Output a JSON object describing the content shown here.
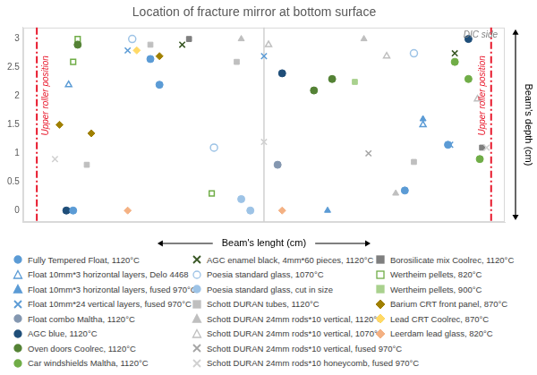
{
  "chart_data": {
    "type": "scatter",
    "title": "Location of fracture mirror at bottom surface",
    "x_label": "Beam's lenght (cm)",
    "y_label": "Beam's depth (cm)",
    "roller_label": "Upper roller position",
    "roller_positions": [
      -5,
      5
    ],
    "center_line": 0,
    "corner_label": "DIC side",
    "xlim": [
      -5.3,
      5.3
    ],
    "ylim": [
      -0.2,
      3.2
    ],
    "yticks": [
      0,
      0.5,
      1,
      1.5,
      2,
      2.5,
      3
    ],
    "tick_labels": "y",
    "grid": false,
    "legend": "bottom",
    "series": [
      {
        "name": "Fully Tempered Float, 1120°C",
        "color": "#5b9bd5",
        "marker": "circle",
        "x": [
          -4.2,
          -2.5,
          -2.3,
          3.1,
          4.05
        ],
        "values": [
          0,
          2.65,
          2.2,
          0.35,
          1.15
        ]
      },
      {
        "name": "Float 10mm*3 horizontal layers, Delo 4468",
        "color": "#5b9bd5",
        "marker": "triangle-open",
        "x": [
          -4.3,
          3.5
        ],
        "values": [
          2.2,
          1.5
        ]
      },
      {
        "name": "Float 10mm*3 horizontal layers, fused 970°C",
        "color": "#5b9bd5",
        "marker": "triangle",
        "x": [
          1.4,
          3.5
        ],
        "values": [
          0,
          1.6
        ]
      },
      {
        "name": "Float 10mm*24 vertical layers, fused 970°C",
        "color": "#5b9bd5",
        "marker": "x",
        "x": [
          -3.0,
          0,
          4.1
        ],
        "values": [
          2.8,
          2.7,
          1.15
        ]
      },
      {
        "name": "Float combo Maltha, 1120°C",
        "color": "#8497b0",
        "marker": "circle",
        "x": [
          0.3
        ],
        "values": [
          0.8
        ]
      },
      {
        "name": "AGC blue, 1120°C",
        "color": "#1f4e79",
        "marker": "circle",
        "x": [
          -4.35,
          0.4,
          4.5
        ],
        "values": [
          0,
          2.4,
          3.0
        ]
      },
      {
        "name": "Oven doors Coolrec, 1120°C",
        "color": "#548235",
        "marker": "circle",
        "x": [
          -4.1,
          1.1,
          1.5
        ],
        "values": [
          2.9,
          2.1,
          2.3
        ]
      },
      {
        "name": "Car windshields Maltha, 1120°C",
        "color": "#70ad47",
        "marker": "circle",
        "x": [
          4.2,
          4.5,
          4.75
        ],
        "values": [
          2.6,
          2.3,
          0.9
        ]
      },
      {
        "name": "AGC enamel black, 4mm*60 pieces, 1120°C",
        "color": "#375623",
        "marker": "x",
        "x": [
          -1.8,
          4.2
        ],
        "values": [
          2.9,
          2.75
        ]
      },
      {
        "name": "Poesia standard glass, 1070°C",
        "color": "#9dc3e6",
        "marker": "circle-open",
        "x": [
          -2.9,
          -1.1,
          3.3
        ],
        "values": [
          3.0,
          1.1,
          2.75
        ]
      },
      {
        "name": "Poesia standard glass, cut in size",
        "color": "#9dc3e6",
        "marker": "circle",
        "x": [
          -0.5,
          -0.3
        ],
        "values": [
          0.2,
          0
        ]
      },
      {
        "name": "Schott DURAN tubes, 1120°C",
        "color": "#bfbfbf",
        "marker": "square",
        "x": [
          -3.9,
          -2.5,
          -0.6,
          3.3
        ],
        "values": [
          0.8,
          2.9,
          2.6,
          0.85
        ]
      },
      {
        "name": "Schott DURAN 24mm rods*10 vertical, 1120°C",
        "color": "#bfbfbf",
        "marker": "triangle",
        "x": [
          -0.5,
          2.2,
          2.9
        ],
        "values": [
          3.0,
          3.0,
          0.3
        ]
      },
      {
        "name": "Schott DURAN 24mm rods*10 vertical, 1070°C",
        "color": "#bfbfbf",
        "marker": "triangle-open",
        "x": [
          0.1,
          2.7,
          4.7
        ],
        "values": [
          2.9,
          2.7,
          1.95
        ]
      },
      {
        "name": "Schott DURAN 24mm rods*10 vertical, fused 970°C",
        "color": "#a5a5a5",
        "marker": "x",
        "x": [
          2.3
        ],
        "values": [
          1.0
        ]
      },
      {
        "name": "Schott DURAN 24mm rods*10 honeycomb, fused 970°C",
        "color": "#d0d0d0",
        "marker": "x",
        "x": [
          -4.6,
          0,
          4.9
        ],
        "values": [
          0.9,
          1.2,
          1.1
        ]
      },
      {
        "name": "Borosilicate mix Coolrec, 1120°C",
        "color": "#7f7f7f",
        "marker": "square",
        "x": [
          -1.65,
          4.8
        ],
        "values": [
          3.0,
          1.1
        ]
      },
      {
        "name": "Wertheim pellets, 820°C",
        "color": "#70ad47",
        "marker": "square-open",
        "x": [
          -4.1,
          -4.2,
          -1.15
        ],
        "values": [
          3.0,
          2.6,
          0.3
        ]
      },
      {
        "name": "Wertheim pellets, 900°C",
        "color": "#a9d18e",
        "marker": "square",
        "x": [
          2.0
        ],
        "values": [
          2.25
        ]
      },
      {
        "name": "Barium CRT front panel, 870°C",
        "color": "#a08000",
        "marker": "diamond",
        "x": [
          -4.5,
          -3.8,
          -2.3
        ],
        "values": [
          1.5,
          1.35,
          2.7
        ]
      },
      {
        "name": "Lead CRT Coolrec, 870°C",
        "color": "#ffd966",
        "marker": "diamond",
        "x": [
          -2.8
        ],
        "values": [
          2.8
        ]
      },
      {
        "name": "Leerdam lead glass, 820°C",
        "color": "#f4b183",
        "marker": "diamond",
        "x": [
          -3.0,
          0.4
        ],
        "values": [
          0,
          0
        ]
      }
    ]
  }
}
